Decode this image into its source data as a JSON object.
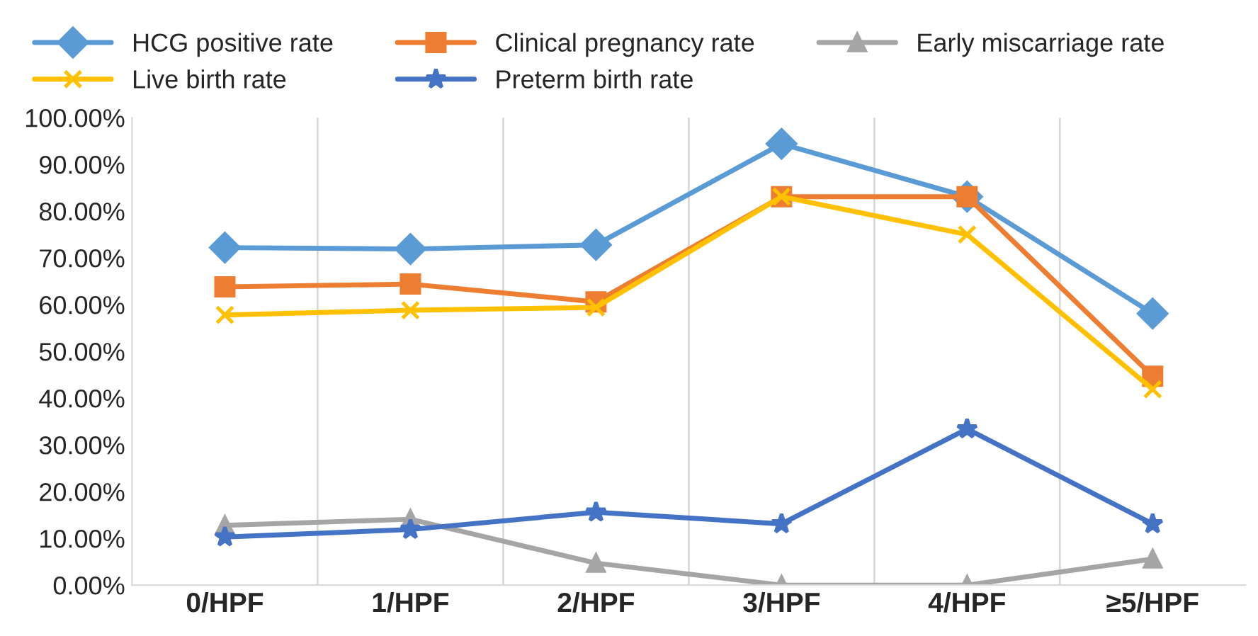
{
  "chart_data": {
    "type": "line",
    "categories": [
      "0/HPF",
      "1/HPF",
      "2/HPF",
      "3/HPF",
      "4/HPF",
      "≥5/HPF"
    ],
    "series": [
      {
        "name": "HCG positive rate",
        "color": "#5b9bd5",
        "marker": "diamond",
        "values": [
          72.2,
          71.9,
          72.8,
          94.4,
          83.1,
          58.1
        ]
      },
      {
        "name": "Clinical pregnancy rate",
        "color": "#ed7d31",
        "marker": "square",
        "values": [
          63.8,
          64.4,
          60.6,
          83.1,
          83.1,
          44.7
        ]
      },
      {
        "name": "Early miscarriage rate",
        "color": "#a5a5a5",
        "marker": "triangle",
        "values": [
          12.8,
          14.1,
          4.7,
          0,
          0,
          5.6
        ]
      },
      {
        "name": "Live birth rate",
        "color": "#ffc000",
        "marker": "cross",
        "values": [
          57.8,
          58.8,
          59.4,
          83.1,
          75.0,
          41.9
        ]
      },
      {
        "name": "Preterm birth rate",
        "color": "#4472c4",
        "marker": "star",
        "values": [
          10.3,
          11.9,
          15.6,
          13.1,
          33.4,
          13.1
        ]
      }
    ],
    "ylim": [
      0,
      100
    ],
    "yticks": [
      {
        "value": 0,
        "label": "0.00%"
      },
      {
        "value": 10,
        "label": "10.00%"
      },
      {
        "value": 20,
        "label": "20.00%"
      },
      {
        "value": 30,
        "label": "30.00%"
      },
      {
        "value": 40,
        "label": "40.00%"
      },
      {
        "value": 50,
        "label": "50.00%"
      },
      {
        "value": 60,
        "label": "60.00%"
      },
      {
        "value": 70,
        "label": "70.00%"
      },
      {
        "value": 80,
        "label": "80.00%"
      },
      {
        "value": 90,
        "label": "90.00%"
      },
      {
        "value": 100,
        "label": "100.00%"
      }
    ],
    "grid": "x",
    "legend": "top",
    "line_style": "solid"
  }
}
